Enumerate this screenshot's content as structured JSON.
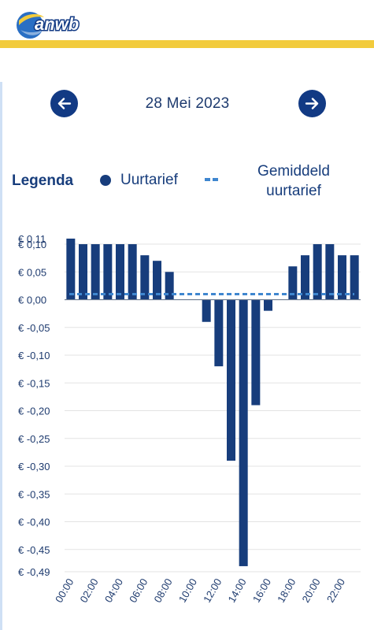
{
  "header": {
    "logo_text": "anwb"
  },
  "navigation": {
    "date": "28 Mei 2023",
    "prev_icon": "arrow-left-icon",
    "next_icon": "arrow-right-icon"
  },
  "legend": {
    "title": "Legenda",
    "hourly_label": "Uurtarief",
    "average_label": "Gemiddeld uurtarief"
  },
  "colors": {
    "brand_yellow": "#f2cb3c",
    "bar": "#173d7c",
    "average_line": "#3f86cf"
  },
  "chart_data": {
    "type": "bar",
    "categories": [
      "00:00",
      "01:00",
      "02:00",
      "03:00",
      "04:00",
      "05:00",
      "06:00",
      "07:00",
      "08:00",
      "09:00",
      "10:00",
      "11:00",
      "12:00",
      "13:00",
      "14:00",
      "15:00",
      "16:00",
      "17:00",
      "18:00",
      "19:00",
      "20:00",
      "21:00",
      "22:00",
      "23:00"
    ],
    "x_tick_labels": [
      "00:00",
      "02:00",
      "04:00",
      "06:00",
      "08:00",
      "10:00",
      "12:00",
      "14:00",
      "16:00",
      "18:00",
      "20:00",
      "22:00"
    ],
    "values": [
      0.11,
      0.1,
      0.1,
      0.1,
      0.1,
      0.1,
      0.08,
      0.07,
      0.05,
      0.0,
      0.0,
      -0.04,
      -0.12,
      -0.29,
      -0.48,
      -0.19,
      -0.02,
      0.0,
      0.06,
      0.08,
      0.1,
      0.1,
      0.08,
      0.08
    ],
    "average": 0.01,
    "ylim": [
      -0.49,
      0.11
    ],
    "y_ticks": [
      0.1,
      0.05,
      0.0,
      -0.05,
      -0.1,
      -0.15,
      -0.2,
      -0.25,
      -0.3,
      -0.35,
      -0.4,
      -0.45
    ],
    "y_tick_labels": [
      "€ 0,10",
      "€ 0,05",
      "€ 0,00",
      "€ -0,05",
      "€ -0,10",
      "€ -0,15",
      "€ -0,20",
      "€ -0,25",
      "€ -0,30",
      "€ -0,35",
      "€ -0,40",
      "€ -0,45"
    ],
    "y_max_label": "€ 0,11",
    "y_min_label": "€ -0,49",
    "grid": true,
    "legend": "top"
  }
}
